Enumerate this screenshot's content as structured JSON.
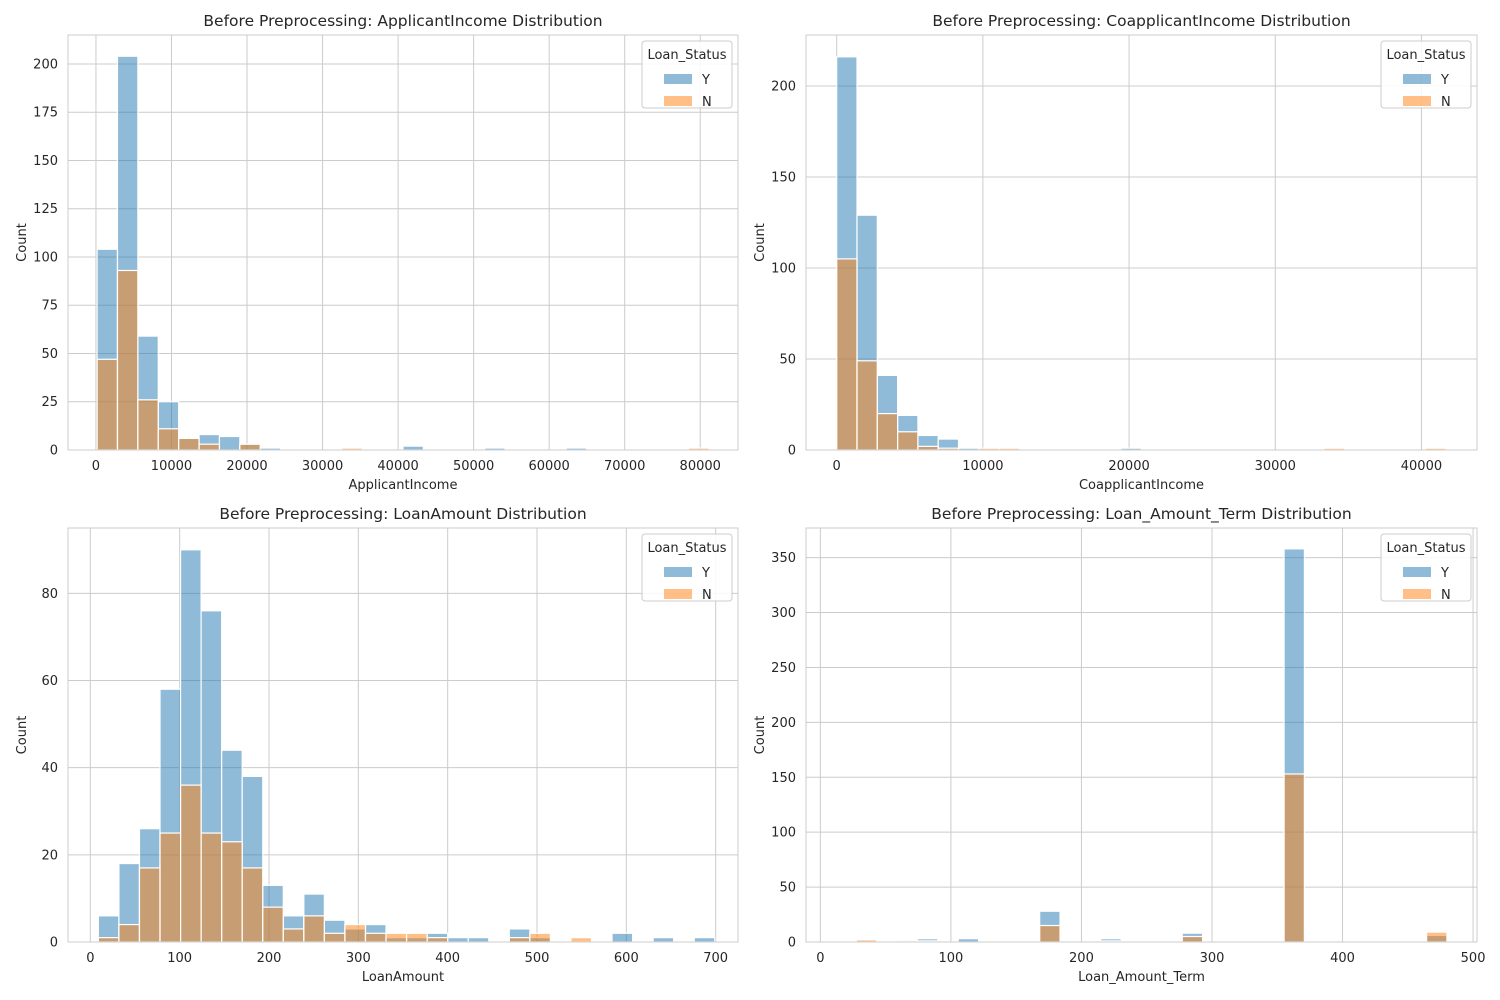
{
  "chart_data": [
    {
      "type": "histogram",
      "title": "Before Preprocessing: ApplicantIncome Distribution",
      "xlabel": "ApplicantIncome",
      "ylabel": "Count",
      "xlim": [
        -3700,
        85000
      ],
      "ylim": [
        0,
        215
      ],
      "xticks": [
        0,
        10000,
        20000,
        30000,
        40000,
        50000,
        60000,
        70000,
        80000
      ],
      "yticks": [
        0,
        25,
        50,
        75,
        100,
        125,
        150,
        175,
        200
      ],
      "bin_start": 150,
      "bin_width": 2700,
      "bins": 30,
      "legend_title": "Loan_Status",
      "legend_position": "upper right",
      "series": [
        {
          "name": "Y",
          "color": "#1f77b4",
          "values": [
            104,
            204,
            59,
            25,
            6,
            8,
            7,
            3,
            1,
            0,
            0,
            0,
            0,
            0,
            0,
            2,
            0,
            0,
            0,
            1,
            0,
            0,
            0,
            1,
            0,
            0,
            0,
            0,
            0,
            0
          ]
        },
        {
          "name": "N",
          "color": "#ff7f0e",
          "values": [
            47,
            93,
            26,
            11,
            6,
            3,
            0,
            3,
            0,
            0,
            0,
            0,
            1,
            0,
            0,
            0,
            0,
            0,
            0,
            0,
            0,
            0,
            0,
            0,
            0,
            0,
            0,
            0,
            0,
            1
          ]
        }
      ]
    },
    {
      "type": "histogram",
      "title": "Before Preprocessing: CoapplicantIncome Distribution",
      "xlabel": "CoapplicantIncome",
      "ylabel": "Count",
      "xlim": [
        -2100,
        43800
      ],
      "ylim": [
        0,
        228
      ],
      "xticks": [
        0,
        10000,
        20000,
        30000,
        40000
      ],
      "yticks": [
        0,
        50,
        100,
        150,
        200
      ],
      "bin_start": 0,
      "bin_width": 1389,
      "bins": 30,
      "legend_title": "Loan_Status",
      "legend_position": "upper right",
      "series": [
        {
          "name": "Y",
          "color": "#1f77b4",
          "values": [
            216,
            129,
            41,
            19,
            8,
            6,
            1,
            0,
            0,
            0,
            0,
            0,
            0,
            0,
            1,
            0,
            0,
            0,
            0,
            0,
            0,
            0,
            0,
            0,
            0,
            0,
            0,
            0,
            0,
            0
          ]
        },
        {
          "name": "N",
          "color": "#ff7f0e",
          "values": [
            105,
            49,
            20,
            10,
            2,
            1,
            0,
            1,
            1,
            0,
            0,
            0,
            0,
            0,
            0,
            0,
            0,
            0,
            0,
            0,
            0,
            0,
            0,
            0,
            1,
            0,
            0,
            0,
            0,
            1
          ]
        }
      ]
    },
    {
      "type": "histogram",
      "title": "Before Preprocessing: LoanAmount Distribution",
      "xlabel": "LoanAmount",
      "ylabel": "Count",
      "xlim": [
        -25,
        725
      ],
      "ylim": [
        0,
        95
      ],
      "xticks": [
        0,
        100,
        200,
        300,
        400,
        500,
        600,
        700
      ],
      "yticks": [
        0,
        20,
        40,
        60,
        80
      ],
      "bin_start": 9,
      "bin_width": 23,
      "bins": 30,
      "legend_title": "Loan_Status",
      "legend_position": "upper right",
      "series": [
        {
          "name": "Y",
          "color": "#1f77b4",
          "values": [
            6,
            18,
            26,
            58,
            90,
            76,
            44,
            38,
            13,
            6,
            11,
            5,
            3,
            4,
            1,
            1,
            2,
            1,
            1,
            0,
            3,
            1,
            0,
            0,
            0,
            2,
            0,
            1,
            0,
            1
          ]
        },
        {
          "name": "N",
          "color": "#ff7f0e",
          "values": [
            1,
            4,
            17,
            25,
            36,
            25,
            23,
            17,
            8,
            3,
            6,
            2,
            4,
            2,
            2,
            2,
            1,
            0,
            0,
            0,
            1,
            2,
            0,
            1,
            0,
            0,
            0,
            0,
            0,
            0
          ]
        }
      ]
    },
    {
      "type": "histogram",
      "title": "Before Preprocessing: Loan_Amount_Term Distribution",
      "xlabel": "Loan_Amount_Term",
      "ylabel": "Count",
      "xlim": [
        -11,
        503
      ],
      "ylim": [
        0,
        377
      ],
      "xticks": [
        0,
        100,
        200,
        300,
        400,
        500
      ],
      "yticks": [
        0,
        50,
        100,
        150,
        200,
        250,
        300,
        350
      ],
      "bin_start": 12,
      "bin_width": 15.6,
      "bins": 30,
      "legend_title": "Loan_Status",
      "legend_position": "upper right",
      "series": [
        {
          "name": "Y",
          "color": "#1f77b4",
          "values": [
            1,
            1,
            0,
            2,
            3,
            0,
            3,
            0,
            0,
            0,
            28,
            0,
            0,
            3,
            0,
            0,
            0,
            8,
            0,
            0,
            0,
            0,
            358,
            0,
            0,
            0,
            0,
            0,
            0,
            6
          ]
        },
        {
          "name": "N",
          "color": "#ff7f0e",
          "values": [
            0,
            2,
            0,
            1,
            1,
            0,
            0,
            0,
            0,
            0,
            15,
            0,
            0,
            1,
            0,
            0,
            0,
            5,
            0,
            0,
            0,
            0,
            153,
            0,
            0,
            0,
            0,
            0,
            0,
            9
          ]
        }
      ]
    }
  ]
}
